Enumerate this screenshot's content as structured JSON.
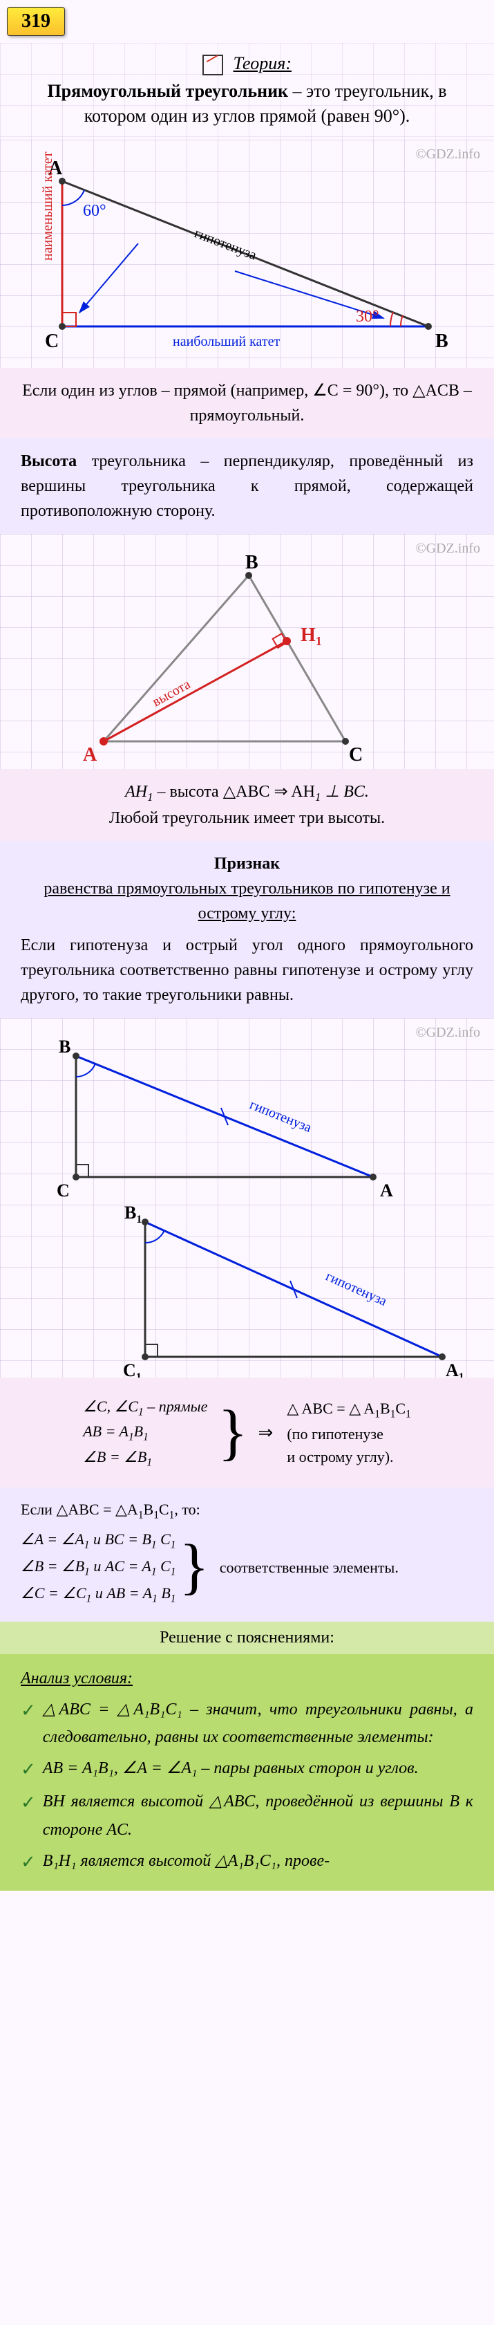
{
  "taskNumber": "319",
  "theory": {
    "headerLabel": "Теория:",
    "rightTriangle": {
      "title": "Прямоугольный треугольник",
      "definition": " – это треугольник, в котором один из углов прямой (равен 90°).",
      "copyright": "©GDZ.info",
      "diagram": {
        "angleA": "60°",
        "angleB": "30°",
        "labelA": "A",
        "labelB": "B",
        "labelC": "C",
        "legSmall": "наименьший катет",
        "legBig": "наибольший катет",
        "hypotenuse": "гипотенуза"
      },
      "note": "Если один из углов – прямой (например, ∠C = 90°), то △ACB – прямоугольный."
    },
    "altitude": {
      "title": "Высота",
      "definition": " треугольника – перпендикуляр, проведённый из вершины треугольника к прямой, содержащей противоположную сторону.",
      "copyright": "©GDZ.info",
      "diagram": {
        "labelA": "A",
        "labelB": "B",
        "labelC": "C",
        "labelH": "H",
        "heightLabel": "высота"
      },
      "note1": "AH",
      "note1sub": "1",
      "note1cont": " – высота △ABC ⇒ AH",
      "note1sub2": "1",
      "note1cont2": " ⊥ BC.",
      "note2": "Любой треугольник имеет три высоты."
    },
    "criterion": {
      "heading": "Признак",
      "subheading": "равенства прямоугольных треугольников по гипотенузе и острому углу:",
      "text": "Если гипотенуза и острый угол одного прямоугольного треугольника соответственно равны гипотенузе и острому углу другого, то такие треугольники равны.",
      "copyright": "©GDZ.info",
      "diagram": {
        "labelA": "A",
        "labelB": "B",
        "labelC": "C",
        "labelA1": "A",
        "labelA1sub": "1",
        "labelB1": "B",
        "labelB1sub": "1",
        "labelC1": "C",
        "labelC1sub": "1",
        "hyp": "гипотенуза"
      },
      "proof": {
        "left1": "∠C, ∠C",
        "left1sub": "1",
        "left1cont": " – прямые",
        "left2": "AB  =  A",
        "left2sub": "1",
        "left2cont": "B",
        "left2sub2": "1",
        "left3": "∠B  =  ∠B",
        "left3sub": "1",
        "right1": "△ ABC  = △ A",
        "right1sub": "1",
        "right1cont": "B",
        "right1sub2": "1",
        "right1cont2": "C",
        "right1sub3": "1",
        "right2": "(по гипотенузе",
        "right3": "и острому углу)."
      },
      "corresp": {
        "header": "Если △ABC = △A",
        "headerSub": "1",
        "headerCont": "B",
        "headerSub2": "1",
        "headerCont2": "C",
        "headerSub3": "1",
        "headerCont3": ", то:",
        "line1a": "∠A  =  ∠A",
        "line1asub": "1",
        "line1b": " и BC  =  B",
        "line1bsub": "1",
        "line1c": " C",
        "line1csub": "1",
        "line2a": "∠B  =  ∠B",
        "line2asub": "1",
        "line2b": " и AC  =  A",
        "line2bsub": "1",
        "line2c": " C",
        "line2csub": "1",
        "line3a": "∠C  =  ∠C",
        "line3asub": "1",
        "line3b": " и AB  =  A",
        "line3bsub": "1",
        "line3c": " B",
        "line3csub": "1",
        "label": "соответственные элементы."
      }
    }
  },
  "solution": {
    "header": "Решение с пояснениями:",
    "analysisHeader": "Анализ условия:",
    "items": [
      {
        "text": "△ABC = △A₁B₁C₁ – значит, что треугольники равны, а следовательно, равны их соответственные элементы:"
      },
      {
        "text": "AB = A₁B₁, ∠A = ∠A₁ – пары равных сторон и углов."
      },
      {
        "text": "BH является высотой △ABC, проведённой из вершины B к стороне AC."
      },
      {
        "text": "B₁H₁ является высотой △A₁B₁C₁, прове-"
      }
    ]
  },
  "colors": {
    "red": "#d32020",
    "blue": "#0020dd",
    "pink": "#f8e8f8",
    "lavender": "#f0e8ff",
    "green": "#b8dc6f",
    "greenLight": "#d4e8a8"
  }
}
